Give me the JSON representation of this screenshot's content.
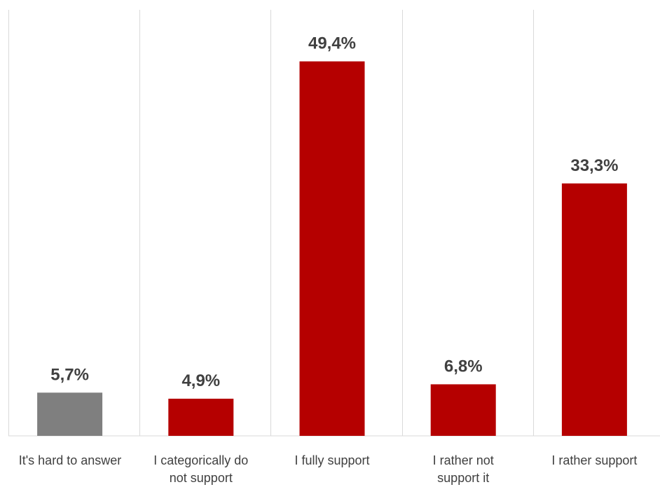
{
  "chart_data": {
    "type": "bar",
    "title": "",
    "xlabel": "",
    "ylabel": "",
    "categories": [
      [
        "It's hard to answer"
      ],
      [
        "I categorically do",
        "not support"
      ],
      [
        "I fully support"
      ],
      [
        "I rather not",
        "support it"
      ],
      [
        "I rather support"
      ]
    ],
    "values": [
      5.7,
      4.9,
      49.4,
      6.8,
      33.3
    ],
    "value_labels": [
      "5,7%",
      "4,9%",
      "49,4%",
      "6,8%",
      "33,3%"
    ],
    "colors": [
      "#7f7f7f",
      "#b50000",
      "#b50000",
      "#b50000",
      "#b50000"
    ],
    "ylim": [
      0,
      55
    ],
    "vertical_separators": true,
    "grid": false,
    "legend": "none"
  }
}
